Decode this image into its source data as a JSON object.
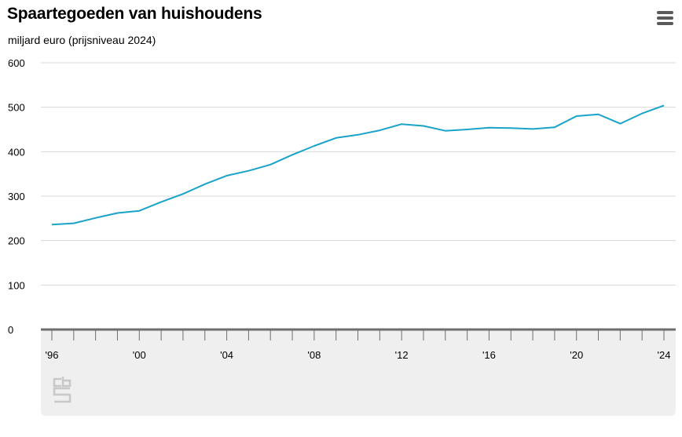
{
  "title": "Spaartegoeden van huishoudens",
  "subtitle": "miljard euro (prijsniveau 2024)",
  "menu_icon": "hamburger-menu-icon",
  "logo_icon": "cbs-logo",
  "colors": {
    "line": "#1aa3c8",
    "grid": "#d9d9d9",
    "axis": "#6e6e6e",
    "footer_bg": "#efefef",
    "logo": "#c8c8c8"
  },
  "chart_data": {
    "type": "line",
    "title": "Spaartegoeden van huishoudens",
    "subtitle": "miljard euro (prijsniveau 2024)",
    "xlabel": "",
    "ylabel": "",
    "ylim": [
      0,
      600
    ],
    "yticks": [
      0,
      100,
      200,
      300,
      400,
      500,
      600
    ],
    "ytick_labels": [
      "0",
      "100",
      "200",
      "300",
      "400",
      "500",
      "600"
    ],
    "xlim": [
      1996,
      2024
    ],
    "xticks": [
      1996,
      2000,
      2004,
      2008,
      2012,
      2016,
      2020,
      2024
    ],
    "xtick_labels": [
      "'96",
      "'00",
      "'04",
      "'08",
      "'12",
      "'16",
      "'20",
      "'24"
    ],
    "grid": true,
    "legend": "none",
    "series": [
      {
        "x": [
          1996,
          1997,
          1998,
          1999,
          2000,
          2001,
          2002,
          2003,
          2004,
          2005,
          2006,
          2007,
          2008,
          2009,
          2010,
          2011,
          2012,
          2013,
          2014,
          2015,
          2016,
          2017,
          2018,
          2019,
          2020,
          2021,
          2022,
          2023,
          2024
        ],
        "values": [
          236,
          239,
          251,
          262,
          267,
          287,
          305,
          327,
          346,
          357,
          371,
          393,
          413,
          431,
          438,
          448,
          462,
          458,
          447,
          450,
          454,
          453,
          451,
          455,
          480,
          484,
          463,
          486,
          504
        ]
      }
    ]
  }
}
